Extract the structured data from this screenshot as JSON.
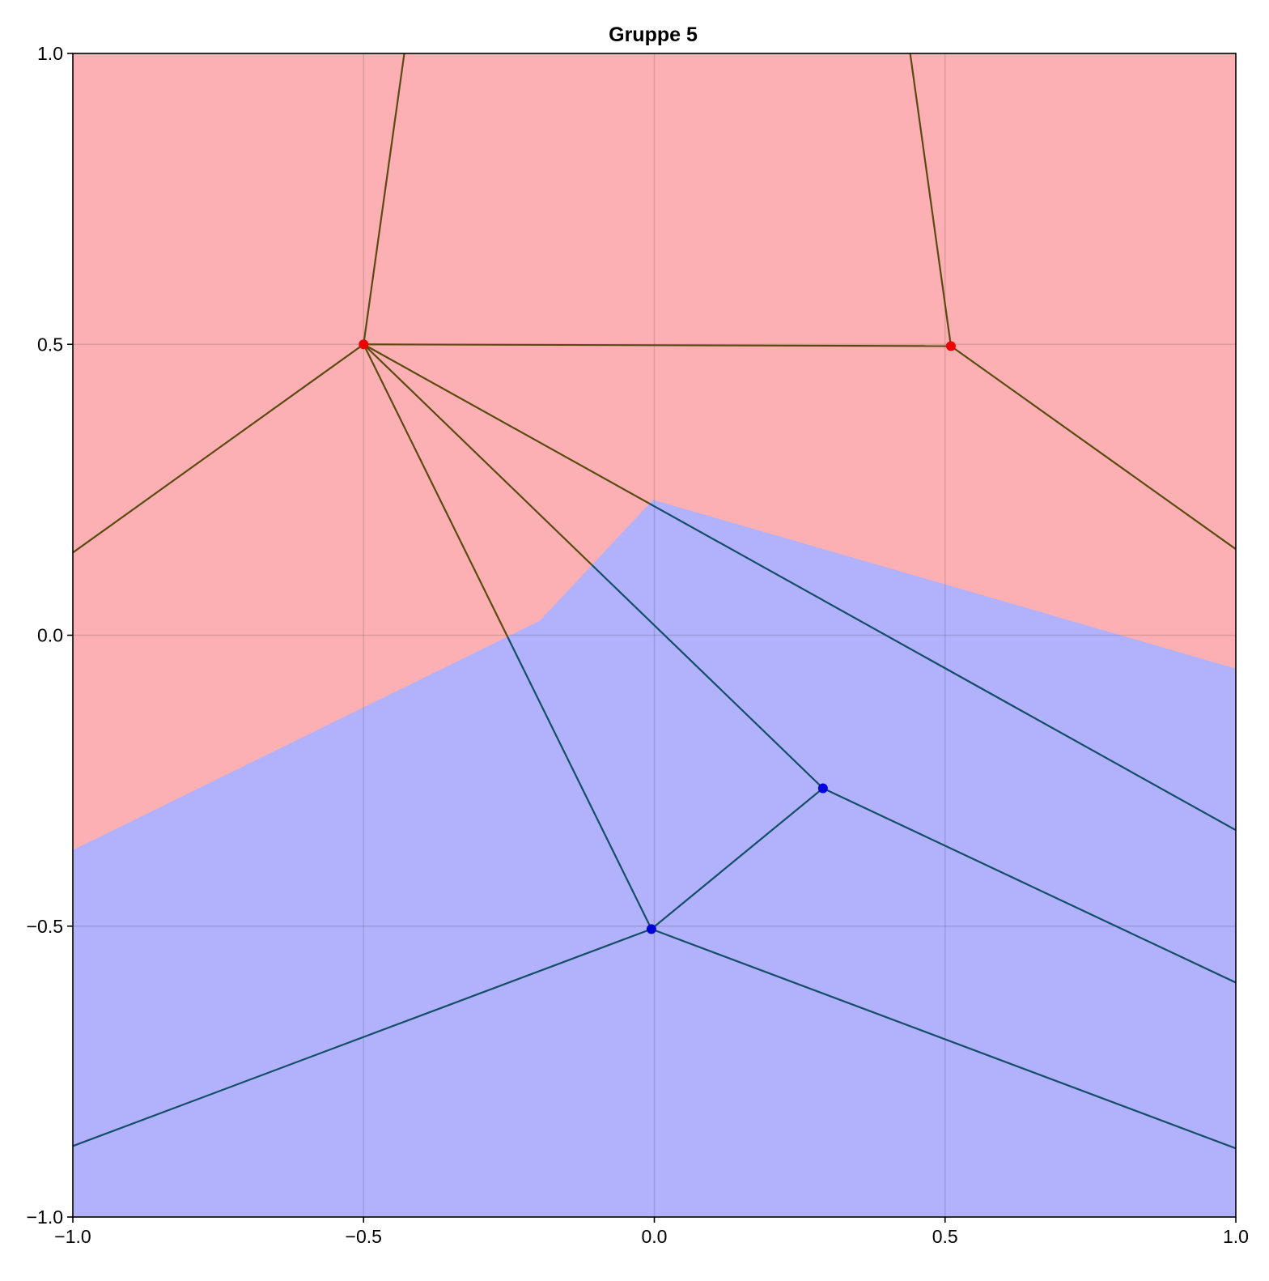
{
  "chart_data": {
    "type": "scatter",
    "title": "Gruppe 5",
    "xlabel": "",
    "ylabel": "",
    "xlim": [
      -1.0,
      1.0
    ],
    "ylim": [
      -1.0,
      1.0
    ],
    "x_ticks": [
      -1.0,
      -0.5,
      0.0,
      0.5,
      1.0
    ],
    "y_ticks": [
      -1.0,
      -0.5,
      0.0,
      0.5,
      1.0
    ],
    "x_tick_labels": [
      "−1.0",
      "−0.5",
      "0.0",
      "0.5",
      "1.0"
    ],
    "y_tick_labels": [
      "−1.0",
      "−0.5",
      "0.0",
      "0.5",
      "1.0"
    ],
    "grid": true,
    "legend": "none",
    "regions": [
      {
        "class": "red",
        "color": "#fcb0b3",
        "polygon": [
          [
            -1.0,
            1.0
          ],
          [
            1.0,
            1.0
          ],
          [
            1.0,
            -0.058
          ],
          [
            -0.002,
            0.232
          ],
          [
            -0.197,
            0.024
          ],
          [
            -1.0,
            -0.37
          ]
        ]
      },
      {
        "class": "blue",
        "color": "#b2b1fb",
        "polygon": [
          [
            -1.0,
            -0.37
          ],
          [
            -0.197,
            0.024
          ],
          [
            -0.002,
            0.232
          ],
          [
            1.0,
            -0.058
          ],
          [
            1.0,
            -1.0
          ],
          [
            -1.0,
            -1.0
          ]
        ]
      }
    ],
    "points": [
      {
        "class": "red",
        "x": -0.5,
        "y": 0.5,
        "color": "#ee0000"
      },
      {
        "class": "red",
        "x": 0.51,
        "y": 0.497,
        "color": "#ee0000"
      },
      {
        "class": "blue",
        "x": 0.29,
        "y": -0.263,
        "color": "#0000dd"
      },
      {
        "class": "blue",
        "x": -0.005,
        "y": -0.505,
        "color": "#0000dd"
      }
    ],
    "lines": [
      {
        "from": [
          -0.5,
          0.5
        ],
        "to": [
          -0.43,
          1.0
        ]
      },
      {
        "from": [
          0.51,
          0.497
        ],
        "to": [
          0.44,
          1.0
        ]
      },
      {
        "from": [
          -0.5,
          0.5
        ],
        "to": [
          0.51,
          0.497
        ]
      },
      {
        "from": [
          -0.5,
          0.5
        ],
        "to": [
          -1.0,
          0.142
        ]
      },
      {
        "from": [
          0.51,
          0.497
        ],
        "to": [
          1.0,
          0.148
        ]
      },
      {
        "from": [
          -0.5,
          0.5
        ],
        "to": [
          1.0,
          -0.335
        ]
      },
      {
        "from": [
          -0.5,
          0.5
        ],
        "to": [
          0.29,
          -0.263
        ]
      },
      {
        "from": [
          -0.5,
          0.5
        ],
        "to": [
          -0.005,
          -0.505
        ]
      },
      {
        "from": [
          0.29,
          -0.263
        ],
        "to": [
          -0.005,
          -0.505
        ]
      },
      {
        "from": [
          0.29,
          -0.263
        ],
        "to": [
          1.0,
          -0.597
        ]
      },
      {
        "from": [
          -0.005,
          -0.505
        ],
        "to": [
          1.0,
          -0.882
        ]
      },
      {
        "from": [
          -0.005,
          -0.505
        ],
        "to": [
          -1.0,
          -0.878
        ]
      }
    ],
    "line_color_in_red_region": "#5a4a10",
    "line_color_in_blue_region": "#124e68",
    "grid_color": "#e0e0e0",
    "axis_color": "#000000"
  }
}
